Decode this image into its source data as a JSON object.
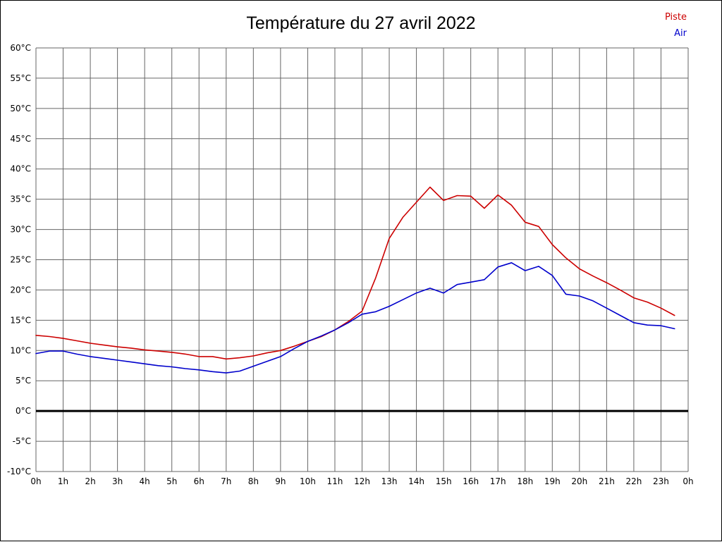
{
  "title": "Température du 27 avril 2022",
  "chart_data": {
    "type": "line",
    "title": "Température du 27 avril 2022",
    "xlabel": "",
    "ylabel": "",
    "xlim": [
      0,
      24
    ],
    "ylim": [
      -10,
      60
    ],
    "grid": true,
    "grid_color": "#666666",
    "legend_position": "top-right",
    "x_tick_hours": [
      0,
      1,
      2,
      3,
      4,
      5,
      6,
      7,
      8,
      9,
      10,
      11,
      12,
      13,
      14,
      15,
      16,
      17,
      18,
      19,
      20,
      21,
      22,
      23,
      24
    ],
    "x_tick_labels": [
      "0h",
      "1h",
      "2h",
      "3h",
      "4h",
      "5h",
      "6h",
      "7h",
      "8h",
      "9h",
      "10h",
      "11h",
      "12h",
      "13h",
      "14h",
      "15h",
      "16h",
      "17h",
      "18h",
      "19h",
      "20h",
      "21h",
      "22h",
      "23h",
      "0h"
    ],
    "y_tick_values": [
      60,
      55,
      50,
      45,
      40,
      35,
      30,
      25,
      20,
      15,
      10,
      5,
      0,
      -5,
      -10
    ],
    "y_tick_labels": [
      "60°C",
      "55°C",
      "50°C",
      "45°C",
      "40°C",
      "35°C",
      "30°C",
      "25°C",
      "20°C",
      "15°C",
      "10°C",
      "5°C",
      "0°C",
      "-5°C",
      "-10°C"
    ],
    "zero_line": {
      "value": 0,
      "color": "#000000",
      "width": 3
    },
    "x": [
      0,
      0.5,
      1,
      1.5,
      2,
      2.5,
      3,
      3.5,
      4,
      4.5,
      5,
      5.5,
      6,
      6.5,
      7,
      7.5,
      8,
      8.5,
      9,
      9.5,
      10,
      10.5,
      11,
      11.5,
      12,
      12.5,
      13,
      13.5,
      14,
      14.5,
      15,
      15.5,
      16,
      16.5,
      17,
      17.5,
      18,
      18.5,
      19,
      19.5,
      20,
      20.5,
      21,
      21.5,
      22,
      22.5,
      23,
      23.5
    ],
    "series": [
      {
        "name": "Piste",
        "color": "#cc0000",
        "values": [
          12.5,
          12.3,
          12.0,
          11.6,
          11.2,
          10.9,
          10.6,
          10.4,
          10.1,
          9.9,
          9.7,
          9.4,
          9.0,
          9.0,
          8.6,
          8.8,
          9.1,
          9.6,
          10.0,
          10.7,
          11.5,
          12.3,
          13.4,
          14.8,
          16.5,
          22.0,
          28.5,
          32.0,
          34.5,
          37.0,
          34.8,
          35.6,
          35.5,
          33.5,
          35.7,
          34.0,
          31.2,
          30.5,
          27.5,
          25.3,
          23.5,
          22.3,
          21.2,
          20.0,
          18.7,
          18.0,
          17.0,
          15.8
        ]
      },
      {
        "name": "Air",
        "color": "#0000cc",
        "values": [
          9.5,
          9.9,
          9.9,
          9.4,
          9.0,
          8.7,
          8.4,
          8.1,
          7.8,
          7.5,
          7.3,
          7.0,
          6.8,
          6.5,
          6.3,
          6.6,
          7.4,
          8.2,
          9.0,
          10.3,
          11.5,
          12.4,
          13.4,
          14.6,
          16.0,
          16.4,
          17.3,
          18.4,
          19.5,
          20.3,
          19.5,
          20.9,
          21.3,
          21.7,
          23.8,
          24.5,
          23.2,
          23.9,
          22.4,
          19.3,
          19.0,
          18.2,
          17.0,
          15.8,
          14.6,
          14.2,
          14.1,
          13.6
        ]
      }
    ]
  }
}
